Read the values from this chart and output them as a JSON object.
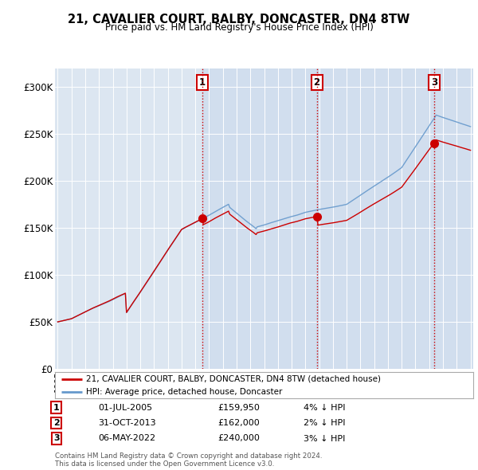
{
  "title": "21, CAVALIER COURT, BALBY, DONCASTER, DN4 8TW",
  "subtitle": "Price paid vs. HM Land Registry's House Price Index (HPI)",
  "ylim": [
    0,
    320000
  ],
  "yticks": [
    0,
    50000,
    100000,
    150000,
    200000,
    250000,
    300000
  ],
  "ytick_labels": [
    "£0",
    "£50K",
    "£100K",
    "£150K",
    "£200K",
    "£250K",
    "£300K"
  ],
  "bg_color": "#ffffff",
  "plot_bg_color": "#dce6f1",
  "shade_color": "#c8d8ec",
  "grid_color": "#ffffff",
  "sale_dates": [
    2005.5,
    2013.83,
    2022.35
  ],
  "sale_prices": [
    159950,
    162000,
    240000
  ],
  "sale_labels": [
    "1",
    "2",
    "3"
  ],
  "vline_color": "#cc0000",
  "sale_marker_color": "#cc0000",
  "hpi_line_color": "#6699cc",
  "price_line_color": "#cc0000",
  "legend_label_price": "21, CAVALIER COURT, BALBY, DONCASTER, DN4 8TW (detached house)",
  "legend_label_hpi": "HPI: Average price, detached house, Doncaster",
  "table_rows": [
    [
      "1",
      "01-JUL-2005",
      "£159,950",
      "4% ↓ HPI"
    ],
    [
      "2",
      "31-OCT-2013",
      "£162,000",
      "2% ↓ HPI"
    ],
    [
      "3",
      "06-MAY-2022",
      "£240,000",
      "3% ↓ HPI"
    ]
  ],
  "footnote": "Contains HM Land Registry data © Crown copyright and database right 2024.\nThis data is licensed under the Open Government Licence v3.0.",
  "x_start_year": 1995,
  "x_end_year": 2025
}
